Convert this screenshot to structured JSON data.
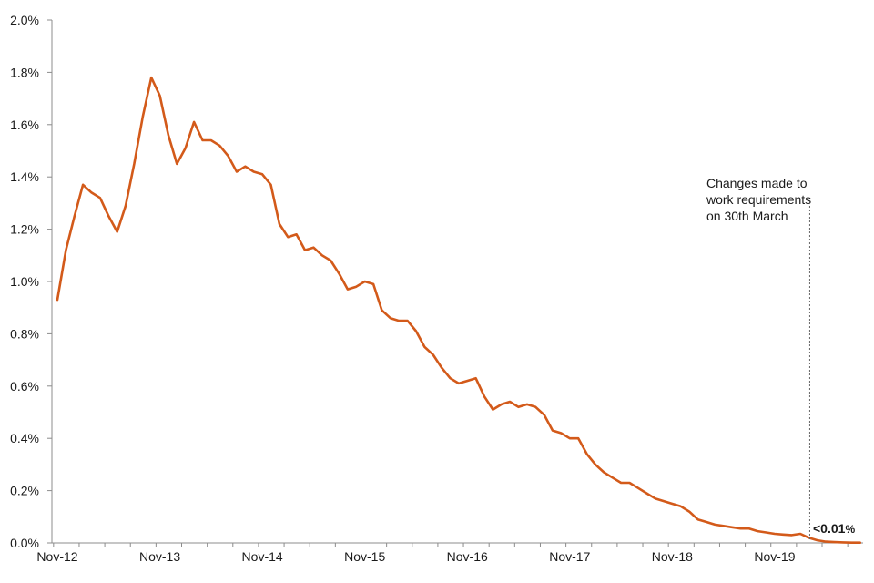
{
  "chart_data": {
    "type": "line",
    "title": "",
    "xlabel": "",
    "ylabel": "",
    "grid": false,
    "legend": "none",
    "ylim": [
      0,
      2.0
    ],
    "y_tick_labels": [
      "0.0%",
      "0.2%",
      "0.4%",
      "0.6%",
      "0.8%",
      "1.0%",
      "1.2%",
      "1.4%",
      "1.6%",
      "1.8%",
      "2.0%"
    ],
    "x_tick_labels": [
      "Nov-12",
      "Nov-13",
      "Nov-14",
      "Nov-15",
      "Nov-16",
      "Nov-17",
      "Nov-18",
      "Nov-19"
    ],
    "x_start": "Nov-12",
    "x_end": "Sep-20",
    "series": [
      {
        "color": "#D35A1A",
        "values": [
          0.93,
          1.12,
          1.25,
          1.37,
          1.34,
          1.32,
          1.25,
          1.19,
          1.29,
          1.45,
          1.63,
          1.78,
          1.71,
          1.56,
          1.45,
          1.51,
          1.61,
          1.54,
          1.54,
          1.52,
          1.48,
          1.42,
          1.44,
          1.42,
          1.41,
          1.37,
          1.22,
          1.17,
          1.18,
          1.12,
          1.13,
          1.1,
          1.08,
          1.03,
          0.97,
          0.98,
          1.0,
          0.99,
          0.89,
          0.86,
          0.85,
          0.85,
          0.81,
          0.75,
          0.72,
          0.67,
          0.63,
          0.61,
          0.62,
          0.63,
          0.56,
          0.51,
          0.53,
          0.54,
          0.52,
          0.53,
          0.52,
          0.49,
          0.43,
          0.42,
          0.4,
          0.4,
          0.34,
          0.3,
          0.27,
          0.25,
          0.23,
          0.23,
          0.21,
          0.19,
          0.17,
          0.16,
          0.15,
          0.14,
          0.12,
          0.09,
          0.08,
          0.07,
          0.065,
          0.06,
          0.055,
          0.055,
          0.045,
          0.04,
          0.035,
          0.032,
          0.03,
          0.035,
          0.02,
          0.01,
          0.005,
          0.003,
          0.002,
          0.001,
          0.001
        ]
      }
    ],
    "annotation": {
      "lines": [
        "Changes made to",
        "work requirements",
        "on 30th March"
      ],
      "marker_index": 88
    },
    "end_label": {
      "value": "<0.01",
      "unit": "%"
    }
  }
}
